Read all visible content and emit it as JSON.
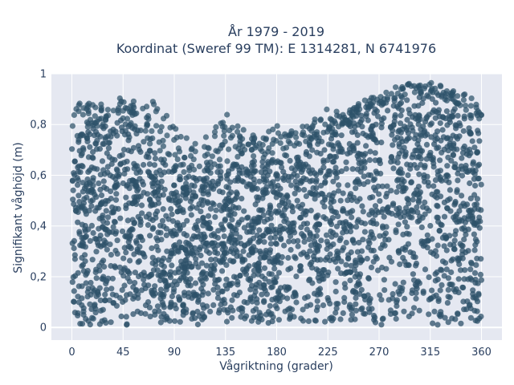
{
  "chart_data": {
    "type": "scatter",
    "title": "År 1979 - 2019",
    "subtitle": "Koordinat (Sweref 99 TM): E 1314281, N 6741976",
    "xlabel": "Vågriktning (grader)",
    "ylabel": "Signifikant våghöjd (m)",
    "xlim": [
      -18,
      378
    ],
    "ylim": [
      -0.05,
      1.0
    ],
    "x_ticks": [
      0,
      45,
      90,
      135,
      180,
      225,
      270,
      315,
      360
    ],
    "x_tick_labels": [
      "0",
      "45",
      "90",
      "135",
      "180",
      "225",
      "270",
      "315",
      "360"
    ],
    "y_ticks": [
      0,
      0.2,
      0.4,
      0.6,
      0.8,
      1.0
    ],
    "y_tick_labels": [
      "0",
      "0,2",
      "0,4",
      "0,6",
      "0,8",
      "1"
    ],
    "grid": true,
    "legend": "none",
    "marker_color": "#2d5269",
    "plot_background": "#e5e8f1",
    "envelope": {
      "direction": [
        0,
        15,
        30,
        45,
        60,
        75,
        90,
        105,
        120,
        135,
        150,
        165,
        180,
        195,
        210,
        225,
        240,
        255,
        270,
        285,
        300,
        315,
        330,
        345,
        360
      ],
      "typical_max_height": [
        0.74,
        0.78,
        0.8,
        0.82,
        0.78,
        0.68,
        0.62,
        0.6,
        0.6,
        0.64,
        0.66,
        0.66,
        0.66,
        0.68,
        0.7,
        0.74,
        0.8,
        0.86,
        0.87,
        0.9,
        0.92,
        0.93,
        0.88,
        0.84,
        0.8
      ],
      "peak_height": [
        0.88,
        0.89,
        0.88,
        0.92,
        0.88,
        0.9,
        0.8,
        0.73,
        0.76,
        0.85,
        0.79,
        0.74,
        0.8,
        0.78,
        0.81,
        0.87,
        0.84,
        0.9,
        0.91,
        0.95,
        0.97,
        0.97,
        0.95,
        0.92,
        0.88
      ]
    }
  }
}
